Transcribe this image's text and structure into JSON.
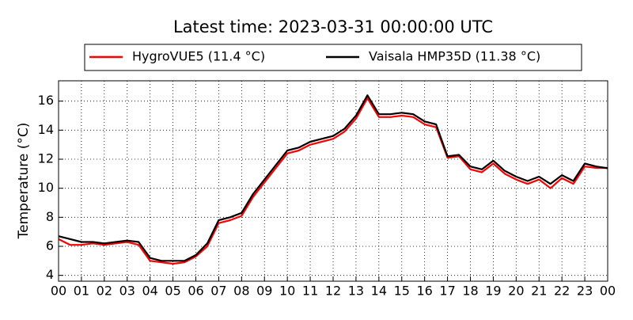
{
  "chart_data": {
    "type": "line",
    "title": "Latest time: 2023-03-31 00:00:00 UTC",
    "y_label": "Temperature (°C)",
    "x": [
      0,
      0.5,
      1,
      1.5,
      2,
      2.5,
      3,
      3.5,
      4,
      4.5,
      5,
      5.5,
      6,
      6.5,
      7,
      7.5,
      8,
      8.5,
      9,
      9.5,
      10,
      10.5,
      11,
      11.5,
      12,
      12.5,
      13,
      13.5,
      14,
      14.5,
      15,
      15.5,
      16,
      16.5,
      17,
      17.5,
      18,
      18.5,
      19,
      19.5,
      20,
      20.5,
      21,
      21.5,
      22,
      22.5,
      23,
      23.5,
      24
    ],
    "series": [
      {
        "name": "HygroVUE5 (11.4 °C)",
        "color": "#ff0000",
        "values": [
          6.5,
          6.1,
          6.1,
          6.2,
          6.1,
          6.2,
          6.3,
          6.1,
          5.0,
          4.9,
          4.8,
          4.9,
          5.3,
          6.0,
          7.6,
          7.8,
          8.1,
          9.4,
          10.4,
          11.4,
          12.4,
          12.6,
          13.0,
          13.2,
          13.4,
          13.9,
          14.8,
          16.2,
          14.9,
          14.9,
          15.0,
          14.9,
          14.4,
          14.2,
          12.1,
          12.2,
          11.3,
          11.1,
          11.7,
          11.0,
          10.6,
          10.3,
          10.6,
          10.0,
          10.7,
          10.3,
          11.5,
          11.4,
          11.4
        ]
      },
      {
        "name": "Vaisala HMP35D (11.38 °C)",
        "color": "#000000",
        "values": [
          6.7,
          6.5,
          6.3,
          6.3,
          6.2,
          6.3,
          6.4,
          6.3,
          5.2,
          5.0,
          5.0,
          5.0,
          5.4,
          6.2,
          7.8,
          8.0,
          8.3,
          9.6,
          10.6,
          11.6,
          12.6,
          12.8,
          13.2,
          13.4,
          13.6,
          14.1,
          15.0,
          16.4,
          15.1,
          15.1,
          15.2,
          15.1,
          14.6,
          14.4,
          12.2,
          12.3,
          11.5,
          11.3,
          11.9,
          11.2,
          10.8,
          10.5,
          10.8,
          10.3,
          10.9,
          10.5,
          11.7,
          11.5,
          11.38
        ]
      }
    ],
    "xlim": [
      0,
      24
    ],
    "xticks": [
      {
        "value": 0,
        "label": "00"
      },
      {
        "value": 1,
        "label": "01"
      },
      {
        "value": 2,
        "label": "02"
      },
      {
        "value": 3,
        "label": "03"
      },
      {
        "value": 4,
        "label": "04"
      },
      {
        "value": 5,
        "label": "05"
      },
      {
        "value": 6,
        "label": "06"
      },
      {
        "value": 7,
        "label": "07"
      },
      {
        "value": 8,
        "label": "08"
      },
      {
        "value": 9,
        "label": "09"
      },
      {
        "value": 10,
        "label": "10"
      },
      {
        "value": 11,
        "label": "11"
      },
      {
        "value": 12,
        "label": "12"
      },
      {
        "value": 13,
        "label": "13"
      },
      {
        "value": 14,
        "label": "14"
      },
      {
        "value": 15,
        "label": "15"
      },
      {
        "value": 16,
        "label": "16"
      },
      {
        "value": 17,
        "label": "17"
      },
      {
        "value": 18,
        "label": "18"
      },
      {
        "value": 19,
        "label": "19"
      },
      {
        "value": 20,
        "label": "20"
      },
      {
        "value": 21,
        "label": "21"
      },
      {
        "value": 22,
        "label": "22"
      },
      {
        "value": 23,
        "label": "23"
      },
      {
        "value": 24,
        "label": "00"
      }
    ],
    "ylim": [
      3.6,
      17.4
    ],
    "yticks": [
      4,
      6,
      8,
      10,
      12,
      14,
      16
    ],
    "grid": true
  }
}
